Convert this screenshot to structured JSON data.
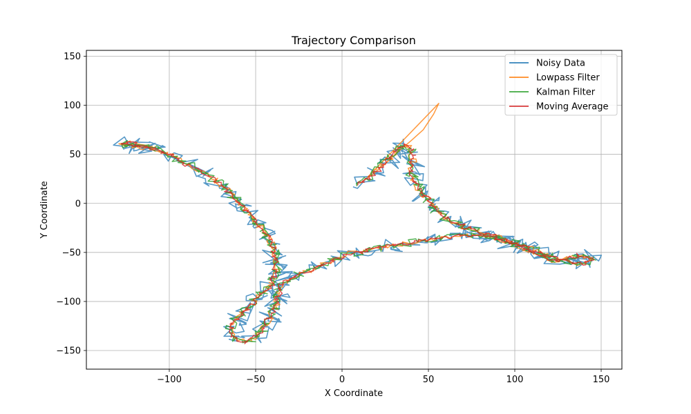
{
  "chart_data": {
    "type": "line",
    "title": "Trajectory Comparison",
    "xlabel": "X Coordinate",
    "ylabel": "Y Coordinate",
    "xlim": [
      -148,
      162
    ],
    "ylim": [
      -169,
      156
    ],
    "xticks": [
      -100,
      -50,
      0,
      50,
      100,
      150
    ],
    "yticks": [
      -150,
      -100,
      -50,
      0,
      50,
      100,
      150
    ],
    "xtick_labels": [
      "−100",
      "−50",
      "0",
      "50",
      "100",
      "150"
    ],
    "ytick_labels": [
      "−150",
      "−100",
      "−50",
      "0",
      "50",
      "100",
      "150"
    ],
    "grid": true,
    "legend_position": "top-right",
    "path": [
      [
        10,
        20
      ],
      [
        18,
        30
      ],
      [
        26,
        42
      ],
      [
        33,
        55
      ],
      [
        37,
        60
      ],
      [
        40,
        57
      ],
      [
        41,
        44
      ],
      [
        40,
        32
      ],
      [
        42,
        22
      ],
      [
        45,
        12
      ],
      [
        50,
        4
      ],
      [
        55,
        -8
      ],
      [
        60,
        -15
      ],
      [
        68,
        -22
      ],
      [
        78,
        -28
      ],
      [
        90,
        -35
      ],
      [
        105,
        -45
      ],
      [
        115,
        -53
      ],
      [
        122,
        -58
      ],
      [
        130,
        -56
      ],
      [
        138,
        -52
      ],
      [
        145,
        -57
      ],
      [
        138,
        -62
      ],
      [
        125,
        -57
      ],
      [
        105,
        -43
      ],
      [
        85,
        -34
      ],
      [
        70,
        -33
      ],
      [
        55,
        -36
      ],
      [
        35,
        -41
      ],
      [
        20,
        -46
      ],
      [
        5,
        -51
      ],
      [
        -5,
        -58
      ],
      [
        -12,
        -64
      ],
      [
        -18,
        -68
      ],
      [
        -25,
        -72
      ],
      [
        -32,
        -78
      ],
      [
        -36,
        -85
      ],
      [
        -37,
        -95
      ],
      [
        -38,
        -105
      ],
      [
        -41,
        -114
      ],
      [
        -44,
        -123
      ],
      [
        -47,
        -130
      ],
      [
        -51,
        -137
      ],
      [
        -55,
        -142
      ],
      [
        -60,
        -139
      ],
      [
        -65,
        -132
      ],
      [
        -63,
        -122
      ],
      [
        -58,
        -112
      ],
      [
        -52,
        -102
      ],
      [
        -47,
        -93
      ],
      [
        -42,
        -85
      ],
      [
        -38,
        -72
      ],
      [
        -39,
        -57
      ],
      [
        -40,
        -45
      ],
      [
        -43,
        -33
      ],
      [
        -48,
        -23
      ],
      [
        -52,
        -14
      ],
      [
        -56,
        -6
      ],
      [
        -62,
        5
      ],
      [
        -68,
        16
      ],
      [
        -76,
        27
      ],
      [
        -86,
        36
      ],
      [
        -96,
        46
      ],
      [
        -106,
        54
      ],
      [
        -116,
        59
      ],
      [
        -124,
        62
      ],
      [
        -128,
        60
      ],
      [
        -122,
        58
      ],
      [
        -110,
        56
      ]
    ],
    "series": [
      {
        "name": "Noisy Data",
        "color": "#1f77b4",
        "noise": 7,
        "seed": 11,
        "values": []
      },
      {
        "name": "Lowpass Filter",
        "color": "#ff7f0e",
        "noise": 2.2,
        "seed": 23,
        "values": [
          [
            10,
            20
          ],
          [
            18,
            30
          ],
          [
            26,
            42
          ],
          [
            34,
            55
          ],
          [
            40,
            64
          ],
          [
            47,
            75
          ],
          [
            53,
            91
          ],
          [
            56,
            102
          ]
        ]
      },
      {
        "name": "Kalman Filter",
        "color": "#2ca02c",
        "noise": 3.5,
        "seed": 37,
        "values": []
      },
      {
        "name": "Moving Average",
        "color": "#d62728",
        "noise": 2,
        "seed": 53,
        "values": []
      }
    ]
  }
}
